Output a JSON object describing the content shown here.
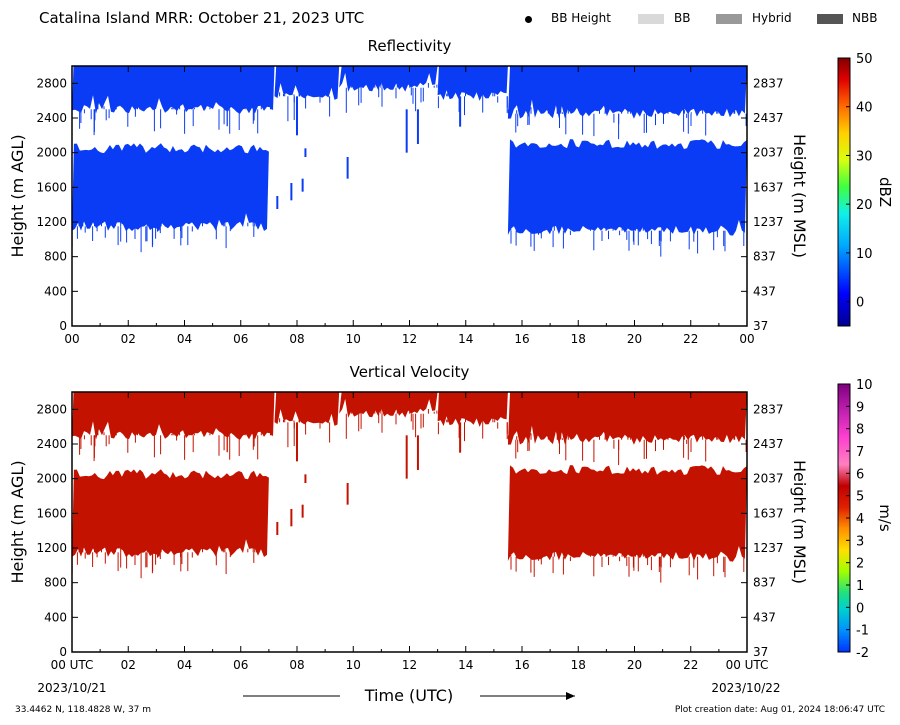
{
  "header": {
    "title": "Catalina Island MRR:  October 21, 2023 UTC",
    "legend": [
      {
        "label": "BB Height",
        "swatch": "dot",
        "color": "#000000"
      },
      {
        "label": "BB",
        "swatch": "box",
        "color": "#d9d9d9"
      },
      {
        "label": "Hybrid",
        "swatch": "box",
        "color": "#999999"
      },
      {
        "label": "NBB",
        "swatch": "box",
        "color": "#555555"
      }
    ]
  },
  "footer": {
    "location": "33.4462 N, 118.4828 W, 37 m",
    "creation": "Plot creation date: Aug 01, 2024 18:06:47 UTC",
    "xaxis_title": "Time (UTC)",
    "start_date": "2023/10/21",
    "end_date": "2023/10/22"
  },
  "chart_data": [
    {
      "type": "heatmap",
      "title": "Reflectivity",
      "ylabel": "Height (m AGL)",
      "ylabel_right": "Height (m MSL)",
      "colorbar_label": "dBZ",
      "x_ticks": [
        "00",
        "02",
        "04",
        "06",
        "08",
        "10",
        "12",
        "14",
        "16",
        "18",
        "20",
        "22",
        "00"
      ],
      "xlim": [
        0,
        24
      ],
      "y_ticks": [
        0,
        400,
        800,
        1200,
        1600,
        2000,
        2400,
        2800
      ],
      "ylim": [
        0,
        3000
      ],
      "y_ticks_right": [
        37,
        437,
        837,
        1237,
        1637,
        2037,
        2437,
        2837
      ],
      "colorbar_ticks": [
        0,
        10,
        20,
        30,
        40,
        50
      ],
      "colorbar_range": [
        -5,
        50
      ],
      "fill_color": "#0b3cf5",
      "layers": [
        {
          "x_start": 0.0,
          "x_end": 7.2,
          "y_bottom": 2500,
          "y_top": 3000
        },
        {
          "x_start": 0.0,
          "x_end": 7.0,
          "y_bottom": 1150,
          "y_top": 2050
        },
        {
          "x_start": 7.2,
          "x_end": 9.5,
          "y_bottom": 2650,
          "y_top": 3000
        },
        {
          "x_start": 9.5,
          "x_end": 13.0,
          "y_bottom": 2750,
          "y_top": 3000
        },
        {
          "x_start": 13.0,
          "x_end": 15.5,
          "y_bottom": 2650,
          "y_top": 3000
        },
        {
          "x_start": 15.5,
          "x_end": 24.0,
          "y_bottom": 2450,
          "y_top": 3000
        },
        {
          "x_start": 15.5,
          "x_end": 24.0,
          "y_bottom": 1100,
          "y_top": 2100
        }
      ]
    },
    {
      "type": "heatmap",
      "title": "Vertical Velocity",
      "ylabel": "Height (m AGL)",
      "ylabel_right": "Height (m MSL)",
      "colorbar_label": "m/s",
      "x_ticks": [
        "00 UTC",
        "02",
        "04",
        "06",
        "08",
        "10",
        "12",
        "14",
        "16",
        "18",
        "20",
        "22",
        "00 UTC"
      ],
      "xlim": [
        0,
        24
      ],
      "y_ticks": [
        0,
        400,
        800,
        1200,
        1600,
        2000,
        2400,
        2800
      ],
      "ylim": [
        0,
        3000
      ],
      "y_ticks_right": [
        37,
        437,
        837,
        1237,
        1637,
        2037,
        2437,
        2837
      ],
      "colorbar_ticks": [
        -2,
        -1,
        0,
        1,
        2,
        3,
        4,
        5,
        6,
        7,
        8,
        9,
        10
      ],
      "colorbar_range": [
        -2,
        10
      ],
      "fill_color": "#c41200",
      "layers": [
        {
          "x_start": 0.0,
          "x_end": 7.2,
          "y_bottom": 2500,
          "y_top": 3000
        },
        {
          "x_start": 0.0,
          "x_end": 7.0,
          "y_bottom": 1150,
          "y_top": 2050
        },
        {
          "x_start": 7.2,
          "x_end": 9.5,
          "y_bottom": 2650,
          "y_top": 3000
        },
        {
          "x_start": 9.5,
          "x_end": 13.0,
          "y_bottom": 2750,
          "y_top": 3000
        },
        {
          "x_start": 13.0,
          "x_end": 15.5,
          "y_bottom": 2650,
          "y_top": 3000
        },
        {
          "x_start": 15.5,
          "x_end": 24.0,
          "y_bottom": 2450,
          "y_top": 3000
        },
        {
          "x_start": 15.5,
          "x_end": 24.0,
          "y_bottom": 1100,
          "y_top": 2100
        }
      ]
    }
  ]
}
